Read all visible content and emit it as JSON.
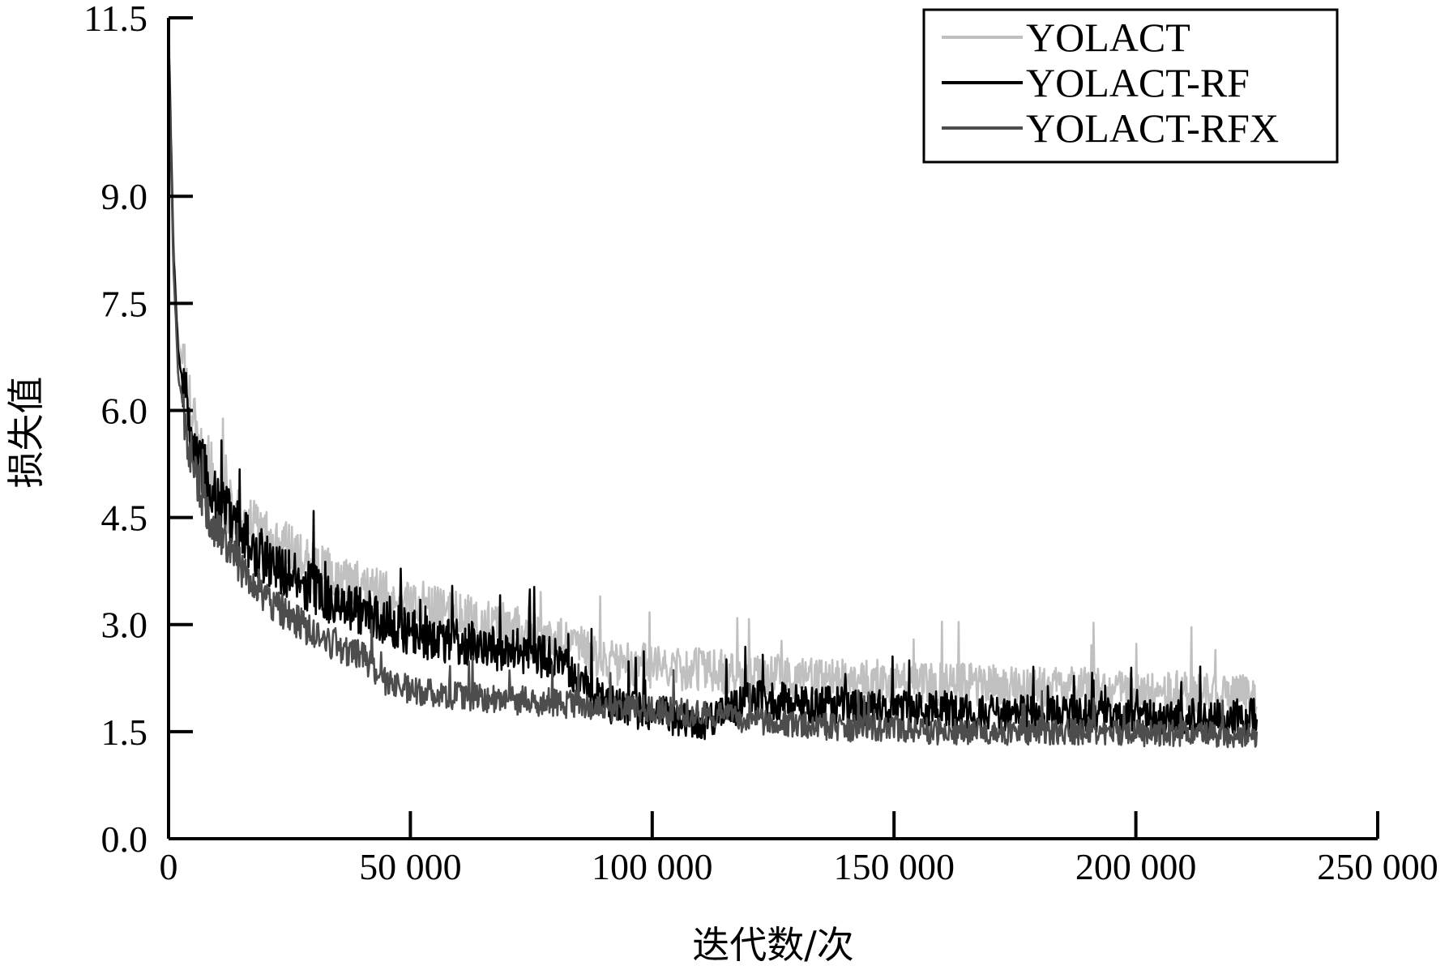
{
  "chart_data": {
    "type": "line",
    "title": "",
    "xlabel": "迭代数/次",
    "ylabel": "损失值",
    "xlim": [
      0,
      250000
    ],
    "ylim": [
      0.0,
      11.5
    ],
    "x_ticks": [
      0,
      50000,
      100000,
      150000,
      200000,
      250000
    ],
    "x_tick_labels": [
      "0",
      "50 000",
      "100 000",
      "150 000",
      "200 000",
      "250 000"
    ],
    "y_ticks": [
      0.0,
      1.5,
      3.0,
      4.5,
      6.0,
      7.5,
      9.0,
      11.5
    ],
    "y_tick_labels": [
      "0.0",
      "1.5",
      "3.0",
      "4.5",
      "6.0",
      "7.5",
      "9.0",
      "11.5"
    ],
    "grid": false,
    "legend": "top-right",
    "series": [
      {
        "name": "YOLACT",
        "color": "#c0c0c0",
        "x": [
          0,
          1000,
          2000,
          4000,
          6000,
          8000,
          10000,
          15000,
          20000,
          25000,
          30000,
          35000,
          40000,
          45000,
          50000,
          55000,
          60000,
          65000,
          70000,
          75000,
          80000,
          85000,
          90000,
          95000,
          100000,
          110000,
          120000,
          130000,
          140000,
          150000,
          160000,
          170000,
          180000,
          190000,
          200000,
          210000,
          220000,
          225000
        ],
        "values": [
          11.5,
          8.4,
          7.0,
          6.1,
          5.6,
          5.3,
          4.9,
          4.5,
          4.2,
          4.0,
          3.8,
          3.6,
          3.5,
          3.4,
          3.3,
          3.2,
          3.1,
          3.0,
          2.95,
          2.85,
          2.8,
          2.65,
          2.5,
          2.45,
          2.4,
          2.35,
          2.3,
          2.25,
          2.2,
          2.2,
          2.15,
          2.15,
          2.1,
          2.1,
          2.05,
          2.05,
          2.0,
          2.0
        ]
      },
      {
        "name": "YOLACT-RF",
        "color": "#000000",
        "x": [
          0,
          1000,
          2000,
          4000,
          6000,
          8000,
          10000,
          15000,
          20000,
          25000,
          30000,
          35000,
          40000,
          45000,
          50000,
          55000,
          60000,
          65000,
          70000,
          75000,
          80000,
          85000,
          90000,
          95000,
          100000,
          105000,
          110000,
          112000,
          120000,
          130000,
          140000,
          150000,
          160000,
          170000,
          180000,
          190000,
          200000,
          210000,
          220000,
          225000
        ],
        "values": [
          11.3,
          8.2,
          6.8,
          5.9,
          5.4,
          5.0,
          4.7,
          4.3,
          3.9,
          3.7,
          3.5,
          3.3,
          3.2,
          3.0,
          2.9,
          2.8,
          2.75,
          2.7,
          2.65,
          2.6,
          2.5,
          2.2,
          1.9,
          1.8,
          1.75,
          1.7,
          1.65,
          1.65,
          1.95,
          1.9,
          1.85,
          1.8,
          1.8,
          1.75,
          1.75,
          1.75,
          1.7,
          1.7,
          1.7,
          1.7
        ]
      },
      {
        "name": "YOLACT-RFX",
        "color": "#4d4d4d",
        "x": [
          0,
          1000,
          2000,
          4000,
          6000,
          8000,
          10000,
          15000,
          20000,
          25000,
          30000,
          35000,
          40000,
          45000,
          50000,
          55000,
          60000,
          70000,
          80000,
          90000,
          100000,
          110000,
          120000,
          130000,
          140000,
          150000,
          160000,
          170000,
          180000,
          190000,
          200000,
          210000,
          220000,
          225000
        ],
        "values": [
          11.0,
          8.0,
          6.5,
          5.6,
          5.0,
          4.6,
          4.3,
          3.8,
          3.4,
          3.1,
          2.9,
          2.7,
          2.55,
          2.2,
          2.1,
          2.05,
          2.0,
          1.95,
          1.9,
          1.85,
          1.8,
          1.75,
          1.65,
          1.6,
          1.55,
          1.55,
          1.5,
          1.5,
          1.5,
          1.5,
          1.48,
          1.48,
          1.45,
          1.45
        ]
      }
    ]
  }
}
